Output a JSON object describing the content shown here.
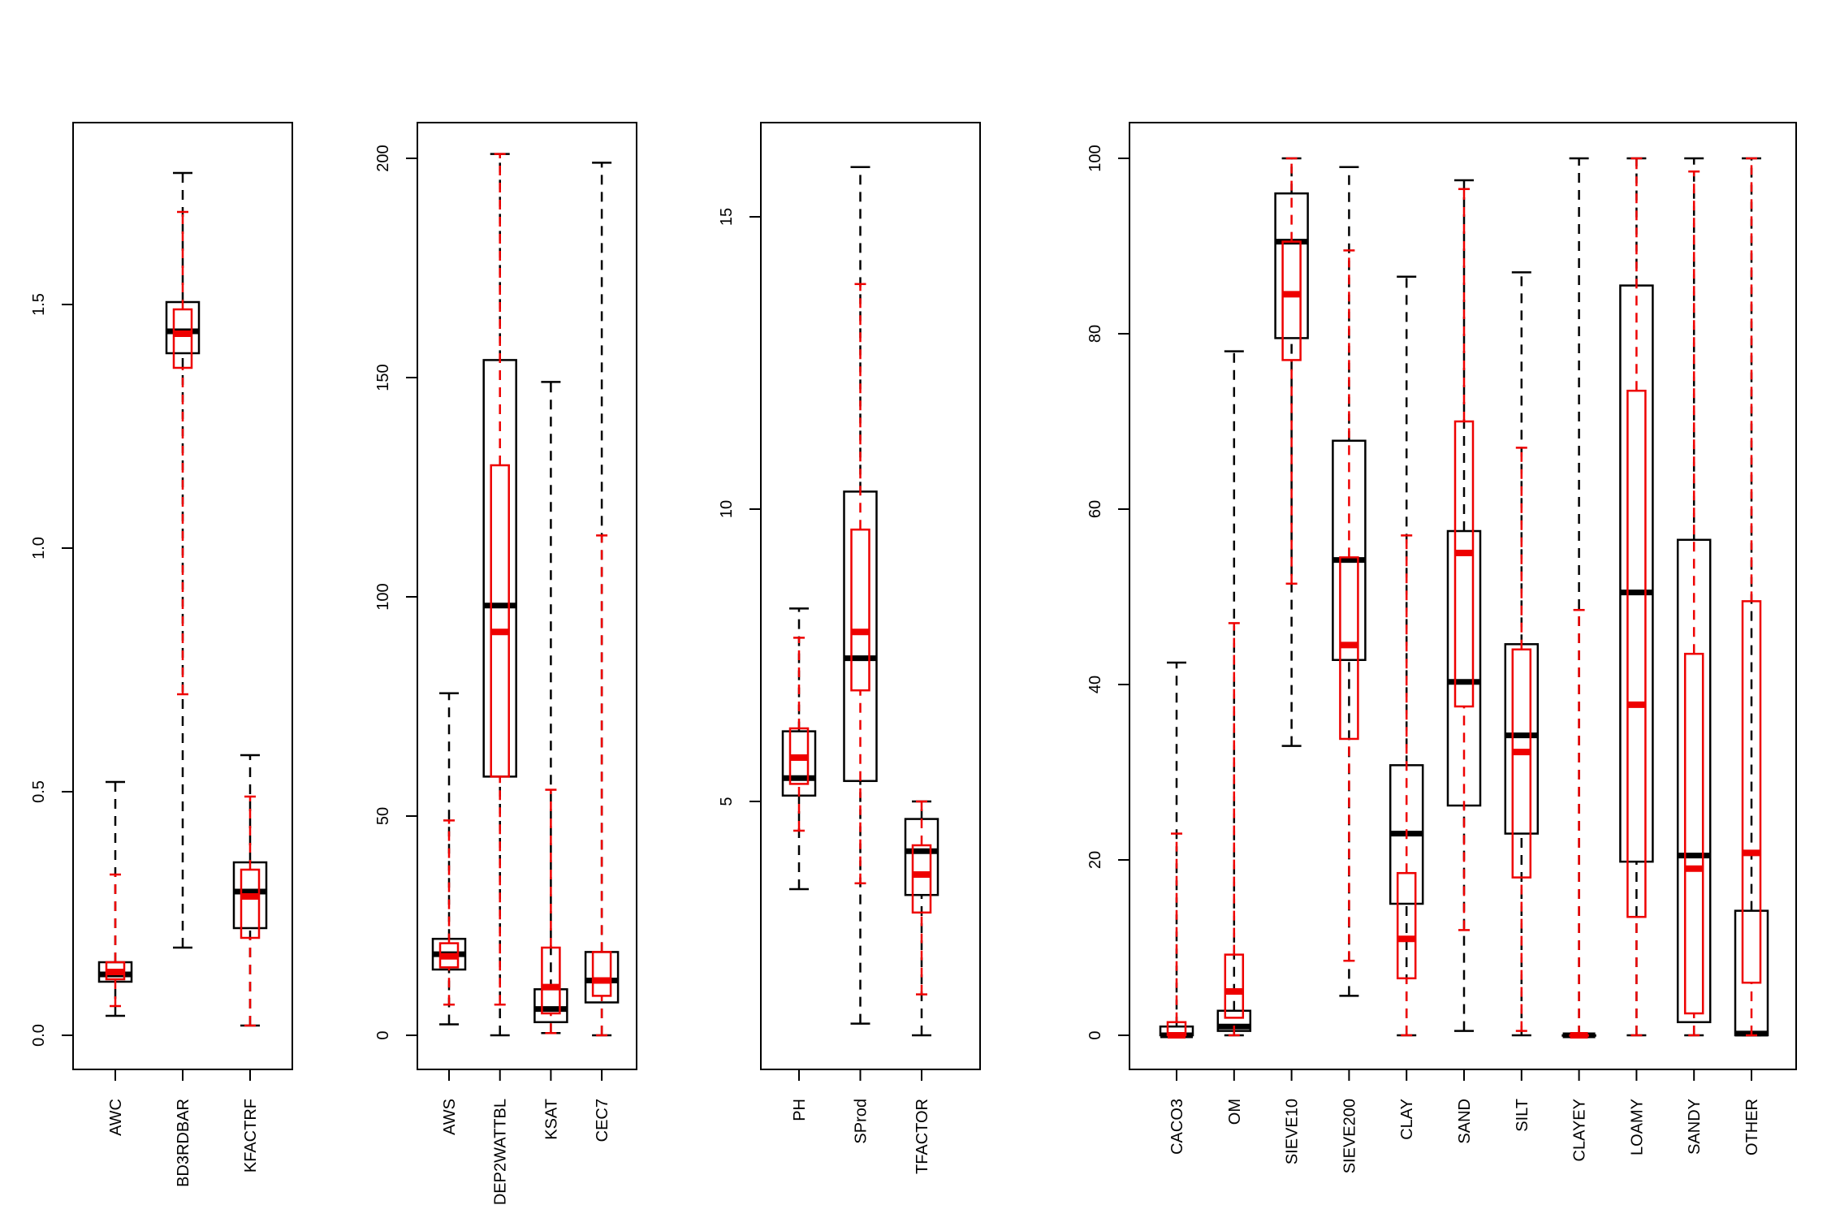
{
  "colors": {
    "series_a": "#000000",
    "series_b": "#ee0000"
  },
  "chart_data": [
    {
      "type": "boxplot",
      "ylim": [
        0,
        1.8
      ],
      "yticks": [
        0.0,
        0.5,
        1.0,
        1.5
      ],
      "ytick_labels": [
        "0.0",
        "0.5",
        "1.0",
        "1.5"
      ],
      "categories": [
        "AWC",
        "BD3RDBAR",
        "KFACTRF"
      ],
      "series": [
        {
          "color": "#000000",
          "boxes": [
            {
              "min": 0.04,
              "q1": 0.11,
              "median": 0.125,
              "q3": 0.15,
              "max": 0.52
            },
            {
              "min": 0.18,
              "q1": 1.4,
              "median": 1.445,
              "q3": 1.505,
              "max": 1.77
            },
            {
              "min": 0.02,
              "q1": 0.22,
              "median": 0.295,
              "q3": 0.355,
              "max": 0.575
            }
          ]
        },
        {
          "color": "#ee0000",
          "boxes": [
            {
              "min": 0.06,
              "q1": 0.115,
              "median": 0.13,
              "q3": 0.15,
              "max": 0.33
            },
            {
              "min": 0.7,
              "q1": 1.37,
              "median": 1.44,
              "q3": 1.49,
              "max": 1.69
            },
            {
              "min": 0.02,
              "q1": 0.2,
              "median": 0.285,
              "q3": 0.34,
              "max": 0.49
            }
          ]
        }
      ]
    },
    {
      "type": "boxplot",
      "ylim": [
        0,
        200
      ],
      "yticks": [
        0,
        50,
        100,
        150,
        200
      ],
      "ytick_labels": [
        "0",
        "50",
        "100",
        "150",
        "200"
      ],
      "categories": [
        "AWS",
        "DEP2WATTBL",
        "KSAT",
        "CEC7"
      ],
      "series": [
        {
          "color": "#000000",
          "boxes": [
            {
              "min": 2.5,
              "q1": 15,
              "median": 18.5,
              "q3": 22,
              "max": 78
            },
            {
              "min": 0,
              "q1": 59,
              "median": 98,
              "q3": 154,
              "max": 201
            },
            {
              "min": 0.5,
              "q1": 3,
              "median": 6,
              "q3": 10.5,
              "max": 149
            },
            {
              "min": 0,
              "q1": 7.5,
              "median": 12.5,
              "q3": 19,
              "max": 199
            }
          ]
        },
        {
          "color": "#ee0000",
          "boxes": [
            {
              "min": 7,
              "q1": 15.5,
              "median": 18,
              "q3": 21,
              "max": 49
            },
            {
              "min": 7,
              "q1": 59,
              "median": 92,
              "q3": 130,
              "max": 201
            },
            {
              "min": 0.5,
              "q1": 5,
              "median": 11,
              "q3": 20,
              "max": 56
            },
            {
              "min": 0,
              "q1": 9,
              "median": 12.5,
              "q3": 19,
              "max": 114
            }
          ]
        }
      ]
    },
    {
      "type": "boxplot",
      "ylim": [
        1,
        16
      ],
      "yticks": [
        5,
        10,
        15
      ],
      "ytick_labels": [
        "5",
        "10",
        "15"
      ],
      "categories": [
        "PH",
        "SProd",
        "TFACTOR"
      ],
      "series": [
        {
          "color": "#000000",
          "boxes": [
            {
              "min": 3.5,
              "q1": 5.1,
              "median": 5.4,
              "q3": 6.2,
              "max": 8.3
            },
            {
              "min": 1.2,
              "q1": 5.35,
              "median": 7.45,
              "q3": 10.3,
              "max": 15.85
            },
            {
              "min": 1.0,
              "q1": 3.4,
              "median": 4.15,
              "q3": 4.7,
              "max": 5.0
            }
          ]
        },
        {
          "color": "#ee0000",
          "boxes": [
            {
              "min": 4.5,
              "q1": 5.3,
              "median": 5.75,
              "q3": 6.25,
              "max": 7.8
            },
            {
              "min": 3.6,
              "q1": 6.9,
              "median": 7.9,
              "q3": 9.65,
              "max": 13.85
            },
            {
              "min": 1.7,
              "q1": 3.1,
              "median": 3.75,
              "q3": 4.25,
              "max": 5.0
            }
          ]
        }
      ]
    },
    {
      "type": "boxplot",
      "ylim": [
        0,
        100
      ],
      "yticks": [
        0,
        20,
        40,
        60,
        80,
        100
      ],
      "ytick_labels": [
        "0",
        "20",
        "40",
        "60",
        "80",
        "100"
      ],
      "categories": [
        "CACO3",
        "OM",
        "SIEVE10",
        "SIEVE200",
        "CLAY",
        "SAND",
        "SILT",
        "CLAYEY",
        "LOAMY",
        "SANDY",
        "OTHER"
      ],
      "series": [
        {
          "color": "#000000",
          "boxes": [
            {
              "min": 0,
              "q1": 0,
              "median": 0,
              "q3": 1,
              "max": 42.5
            },
            {
              "min": 0,
              "q1": 0.5,
              "median": 1,
              "q3": 2.8,
              "max": 78
            },
            {
              "min": 33,
              "q1": 79.5,
              "median": 90.5,
              "q3": 96,
              "max": 100
            },
            {
              "min": 4.5,
              "q1": 42.8,
              "median": 54.2,
              "q3": 67.8,
              "max": 99
            },
            {
              "min": 0,
              "q1": 15,
              "median": 23,
              "q3": 30.8,
              "max": 86.5
            },
            {
              "min": 0.5,
              "q1": 26.2,
              "median": 40.3,
              "q3": 57.5,
              "max": 97.5
            },
            {
              "min": 0,
              "q1": 23,
              "median": 34.2,
              "q3": 44.6,
              "max": 87
            },
            {
              "min": 0,
              "q1": 0,
              "median": 0,
              "q3": 0,
              "max": 100
            },
            {
              "min": 0,
              "q1": 19.8,
              "median": 50.5,
              "q3": 85.5,
              "max": 100
            },
            {
              "min": 0,
              "q1": 1.5,
              "median": 20.5,
              "q3": 56.5,
              "max": 100
            },
            {
              "min": 0,
              "q1": 0,
              "median": 0.2,
              "q3": 14.2,
              "max": 100
            }
          ]
        },
        {
          "color": "#ee0000",
          "boxes": [
            {
              "min": 0,
              "q1": 0,
              "median": 0,
              "q3": 1.5,
              "max": 23
            },
            {
              "min": 0,
              "q1": 2,
              "median": 5,
              "q3": 9.2,
              "max": 47
            },
            {
              "min": 51.5,
              "q1": 77,
              "median": 84.5,
              "q3": 90.5,
              "max": 100
            },
            {
              "min": 8.5,
              "q1": 33.8,
              "median": 44.5,
              "q3": 54.5,
              "max": 89.5
            },
            {
              "min": 0,
              "q1": 6.5,
              "median": 11,
              "q3": 18.5,
              "max": 57
            },
            {
              "min": 12,
              "q1": 37.5,
              "median": 55,
              "q3": 70,
              "max": 96.5
            },
            {
              "min": 0.5,
              "q1": 18,
              "median": 32.3,
              "q3": 44,
              "max": 67
            },
            {
              "min": 0,
              "q1": 0,
              "median": 0,
              "q3": 0,
              "max": 48.5
            },
            {
              "min": 0,
              "q1": 13.5,
              "median": 37.7,
              "q3": 73.5,
              "max": 100
            },
            {
              "min": 0,
              "q1": 2.5,
              "median": 19,
              "q3": 43.5,
              "max": 98.5
            },
            {
              "min": 0,
              "q1": 6,
              "median": 20.8,
              "q3": 49.5,
              "max": 100
            }
          ]
        }
      ]
    }
  ]
}
